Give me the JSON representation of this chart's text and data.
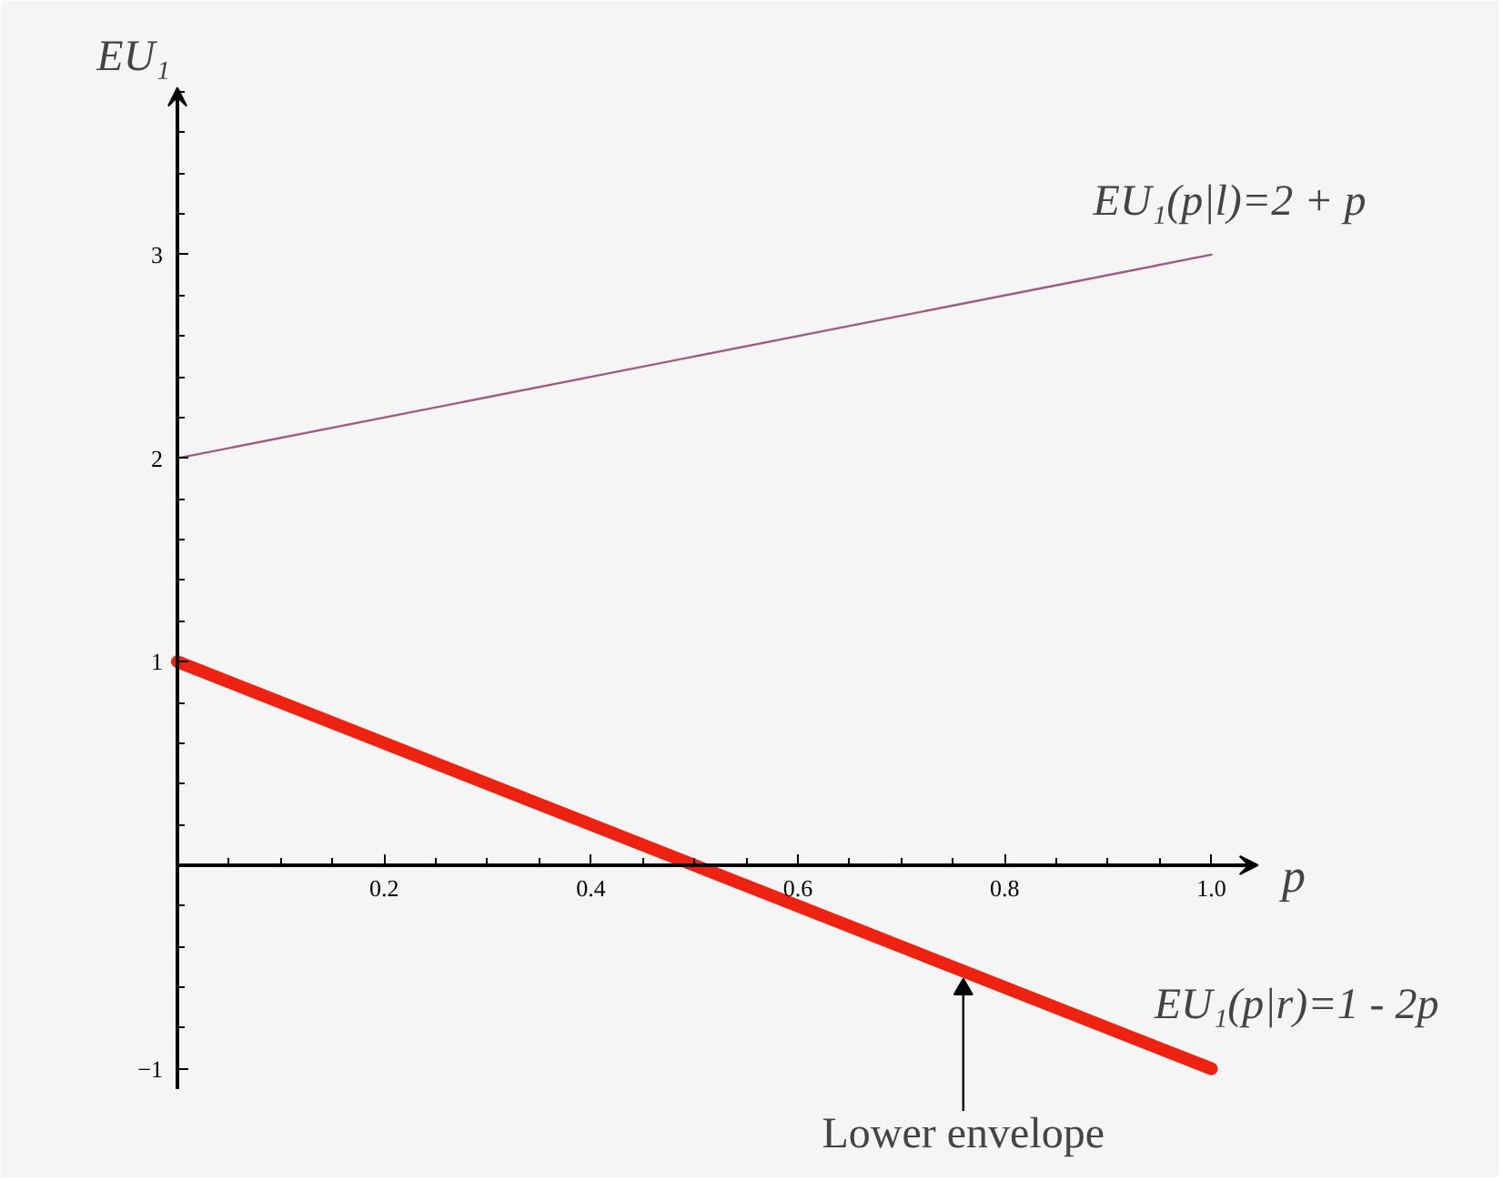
{
  "chart_data": {
    "type": "line",
    "xlabel": "p",
    "ylabel": "EU₁",
    "x": [
      0,
      1
    ],
    "series": [
      {
        "name": "EU₁(p|l)=2 + p",
        "values": [
          2,
          3
        ],
        "color": "#a05a82"
      },
      {
        "name": "EU₁(p|r)=1 - 2p",
        "values": [
          1,
          -1
        ],
        "color": "#ee2211"
      }
    ],
    "xlim": [
      0,
      1.04
    ],
    "ylim": [
      -1.1,
      3.8
    ],
    "xticks": [
      0.2,
      0.4,
      0.6,
      0.8,
      {
        "value": 1,
        "label": "1.0"
      }
    ],
    "yticks": [
      -1,
      1,
      2,
      3
    ],
    "grid": false,
    "annotations": [
      {
        "text": "Lower envelope",
        "x": 0.76,
        "y": -0.52
      }
    ]
  }
}
